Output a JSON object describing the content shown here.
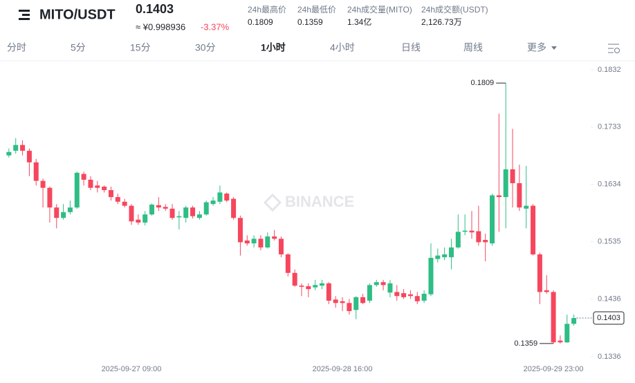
{
  "header": {
    "symbol": "MITO/USDT",
    "price": "0.1403",
    "cny": "≈ ¥0.998936",
    "change": "-3.37%",
    "stats": [
      {
        "label": "24h最高价",
        "value": "0.1809"
      },
      {
        "label": "24h最低价",
        "value": "0.1359"
      },
      {
        "label": "24h成交量(MITO)",
        "value": "1.34亿"
      },
      {
        "label": "24h成交额(USDT)",
        "value": "2,126.73万"
      }
    ]
  },
  "tabs": [
    "分时",
    "5分",
    "15分",
    "30分",
    "1小时",
    "4小时",
    "日线",
    "周线",
    "更多"
  ],
  "active_tab": 4,
  "watermark": "BINANCE",
  "chart_data": {
    "type": "candlestick",
    "up_color": "#2ebd85",
    "down_color": "#f6465d",
    "categories": [
      null,
      null,
      null,
      null,
      null,
      null,
      null,
      null,
      null,
      null,
      null,
      null,
      null,
      null,
      null,
      null,
      null,
      null,
      "2025-09-27 09:00",
      null,
      null,
      null,
      null,
      null,
      null,
      null,
      null,
      null,
      null,
      null,
      null,
      null,
      null,
      null,
      null,
      null,
      null,
      null,
      null,
      null,
      null,
      null,
      null,
      null,
      null,
      null,
      null,
      null,
      null,
      "2025-09-28 16:00",
      null,
      null,
      null,
      null,
      null,
      null,
      null,
      null,
      null,
      null,
      null,
      null,
      null,
      null,
      null,
      null,
      null,
      null,
      null,
      null,
      null,
      null,
      null,
      null,
      null,
      null,
      null,
      null,
      null,
      null,
      "2025-09-29 23:00",
      null,
      null,
      null
    ],
    "open": [
      0.1684,
      0.1692,
      0.1702,
      0.1692,
      0.1672,
      0.164,
      0.1628,
      0.1594,
      0.1576,
      0.1586,
      0.1594,
      0.1652,
      0.1642,
      0.1632,
      0.163,
      0.1624,
      0.1612,
      0.1604,
      0.1597,
      0.1573,
      0.1568,
      0.1582,
      0.1598,
      0.1595,
      0.1592,
      0.1577,
      0.1576,
      0.1594,
      0.1576,
      0.1582,
      0.16,
      0.1604,
      0.1618,
      0.1609,
      0.1576,
      0.1537,
      0.1532,
      0.154,
      0.1525,
      0.1544,
      0.154,
      0.1513,
      0.1481,
      0.1459,
      0.1458,
      0.1456,
      0.1459,
      0.1463,
      0.1435,
      0.1432,
      0.1429,
      0.1417,
      0.1439,
      0.1433,
      0.146,
      0.1465,
      0.1447,
      0.1448,
      0.1446,
      0.1444,
      0.1441,
      0.1433,
      0.1444,
      0.1505,
      0.1508,
      0.1508,
      0.1525,
      0.1552,
      0.1554,
      0.1553,
      0.1538,
      0.1532,
      0.1615,
      0.1612,
      0.166,
      0.1636,
      0.1592,
      0.1597,
      0.1513,
      0.1451,
      0.1448,
      0.1364,
      0.1361,
      0.1393
    ],
    "high": [
      0.1696,
      0.1714,
      0.171,
      0.1696,
      0.1678,
      0.1644,
      0.163,
      0.16,
      0.16,
      0.1606,
      0.1656,
      0.1656,
      0.1648,
      0.164,
      0.1632,
      0.163,
      0.1618,
      0.1609,
      0.16,
      0.1582,
      0.1588,
      0.1601,
      0.1612,
      0.16,
      0.16,
      0.1588,
      0.1597,
      0.1597,
      0.1588,
      0.1606,
      0.1612,
      0.1632,
      0.162,
      0.1612,
      0.158,
      0.1546,
      0.1546,
      0.1546,
      0.1551,
      0.1555,
      0.1544,
      0.1515,
      0.1487,
      0.1463,
      0.1463,
      0.1469,
      0.1469,
      0.1465,
      0.1441,
      0.1439,
      0.1436,
      0.1441,
      0.1445,
      0.1463,
      0.1469,
      0.1469,
      0.1469,
      0.146,
      0.1453,
      0.1451,
      0.1448,
      0.1451,
      0.1532,
      0.1523,
      0.1525,
      0.154,
      0.1582,
      0.1582,
      0.1588,
      0.1597,
      0.1549,
      0.1618,
      0.1756,
      0.1809,
      0.173,
      0.1668,
      0.1666,
      0.16,
      0.1516,
      0.1477,
      0.1451,
      0.1373,
      0.1409,
      0.1409
    ],
    "low": [
      0.168,
      0.1687,
      0.1684,
      0.1648,
      0.1632,
      0.1594,
      0.1568,
      0.1558,
      0.1573,
      0.1582,
      0.1592,
      0.1632,
      0.1624,
      0.162,
      0.162,
      0.1606,
      0.16,
      0.1594,
      0.1564,
      0.1564,
      0.1563,
      0.158,
      0.1588,
      0.1588,
      0.1573,
      0.1556,
      0.1568,
      0.1575,
      0.1573,
      0.158,
      0.1597,
      0.16,
      0.1603,
      0.1573,
      0.1511,
      0.1528,
      0.1525,
      0.152,
      0.1523,
      0.1537,
      0.1508,
      0.1475,
      0.1457,
      0.1441,
      0.1439,
      0.1451,
      0.1453,
      0.1427,
      0.1421,
      0.1415,
      0.1409,
      0.1401,
      0.1427,
      0.1429,
      0.1457,
      0.1451,
      0.1439,
      0.1433,
      0.1436,
      0.1436,
      0.1427,
      0.1429,
      0.1441,
      0.1499,
      0.1503,
      0.1487,
      0.1523,
      0.1546,
      0.154,
      0.1528,
      0.1501,
      0.1528,
      0.1552,
      0.1558,
      0.1594,
      0.1588,
      0.1558,
      0.1511,
      0.1427,
      0.1445,
      0.1359,
      0.1359,
      0.136,
      0.139
    ],
    "close": [
      0.169,
      0.1702,
      0.1692,
      0.1672,
      0.164,
      0.1628,
      0.1594,
      0.1576,
      0.1586,
      0.1594,
      0.1654,
      0.1642,
      0.1628,
      0.1628,
      0.1624,
      0.1612,
      0.1604,
      0.1597,
      0.157,
      0.1568,
      0.1582,
      0.1599,
      0.1594,
      0.1592,
      0.1576,
      0.1579,
      0.1594,
      0.1579,
      0.1582,
      0.1603,
      0.1606,
      0.162,
      0.1606,
      0.1576,
      0.1534,
      0.1532,
      0.154,
      0.1525,
      0.1544,
      0.154,
      0.1513,
      0.1481,
      0.1459,
      0.1457,
      0.1453,
      0.146,
      0.1463,
      0.1433,
      0.1429,
      0.1429,
      0.1415,
      0.1439,
      0.1429,
      0.146,
      0.1465,
      0.146,
      0.1463,
      0.1441,
      0.1439,
      0.1441,
      0.1432,
      0.1445,
      0.1507,
      0.1511,
      0.1513,
      0.1525,
      0.1552,
      0.1554,
      0.1551,
      0.1534,
      0.1534,
      0.1615,
      0.1612,
      0.166,
      0.1636,
      0.1594,
      0.1597,
      0.1513,
      0.1448,
      0.1448,
      0.1361,
      0.1361,
      0.1393,
      0.1403
    ],
    "ylim": [
      0.1329,
      0.1845
    ],
    "yticks": [
      0.1832,
      0.1733,
      0.1634,
      0.1535,
      0.1436,
      0.1336
    ],
    "max_label": 0.1809,
    "min_label": 0.1359,
    "last_price": 0.1403
  }
}
